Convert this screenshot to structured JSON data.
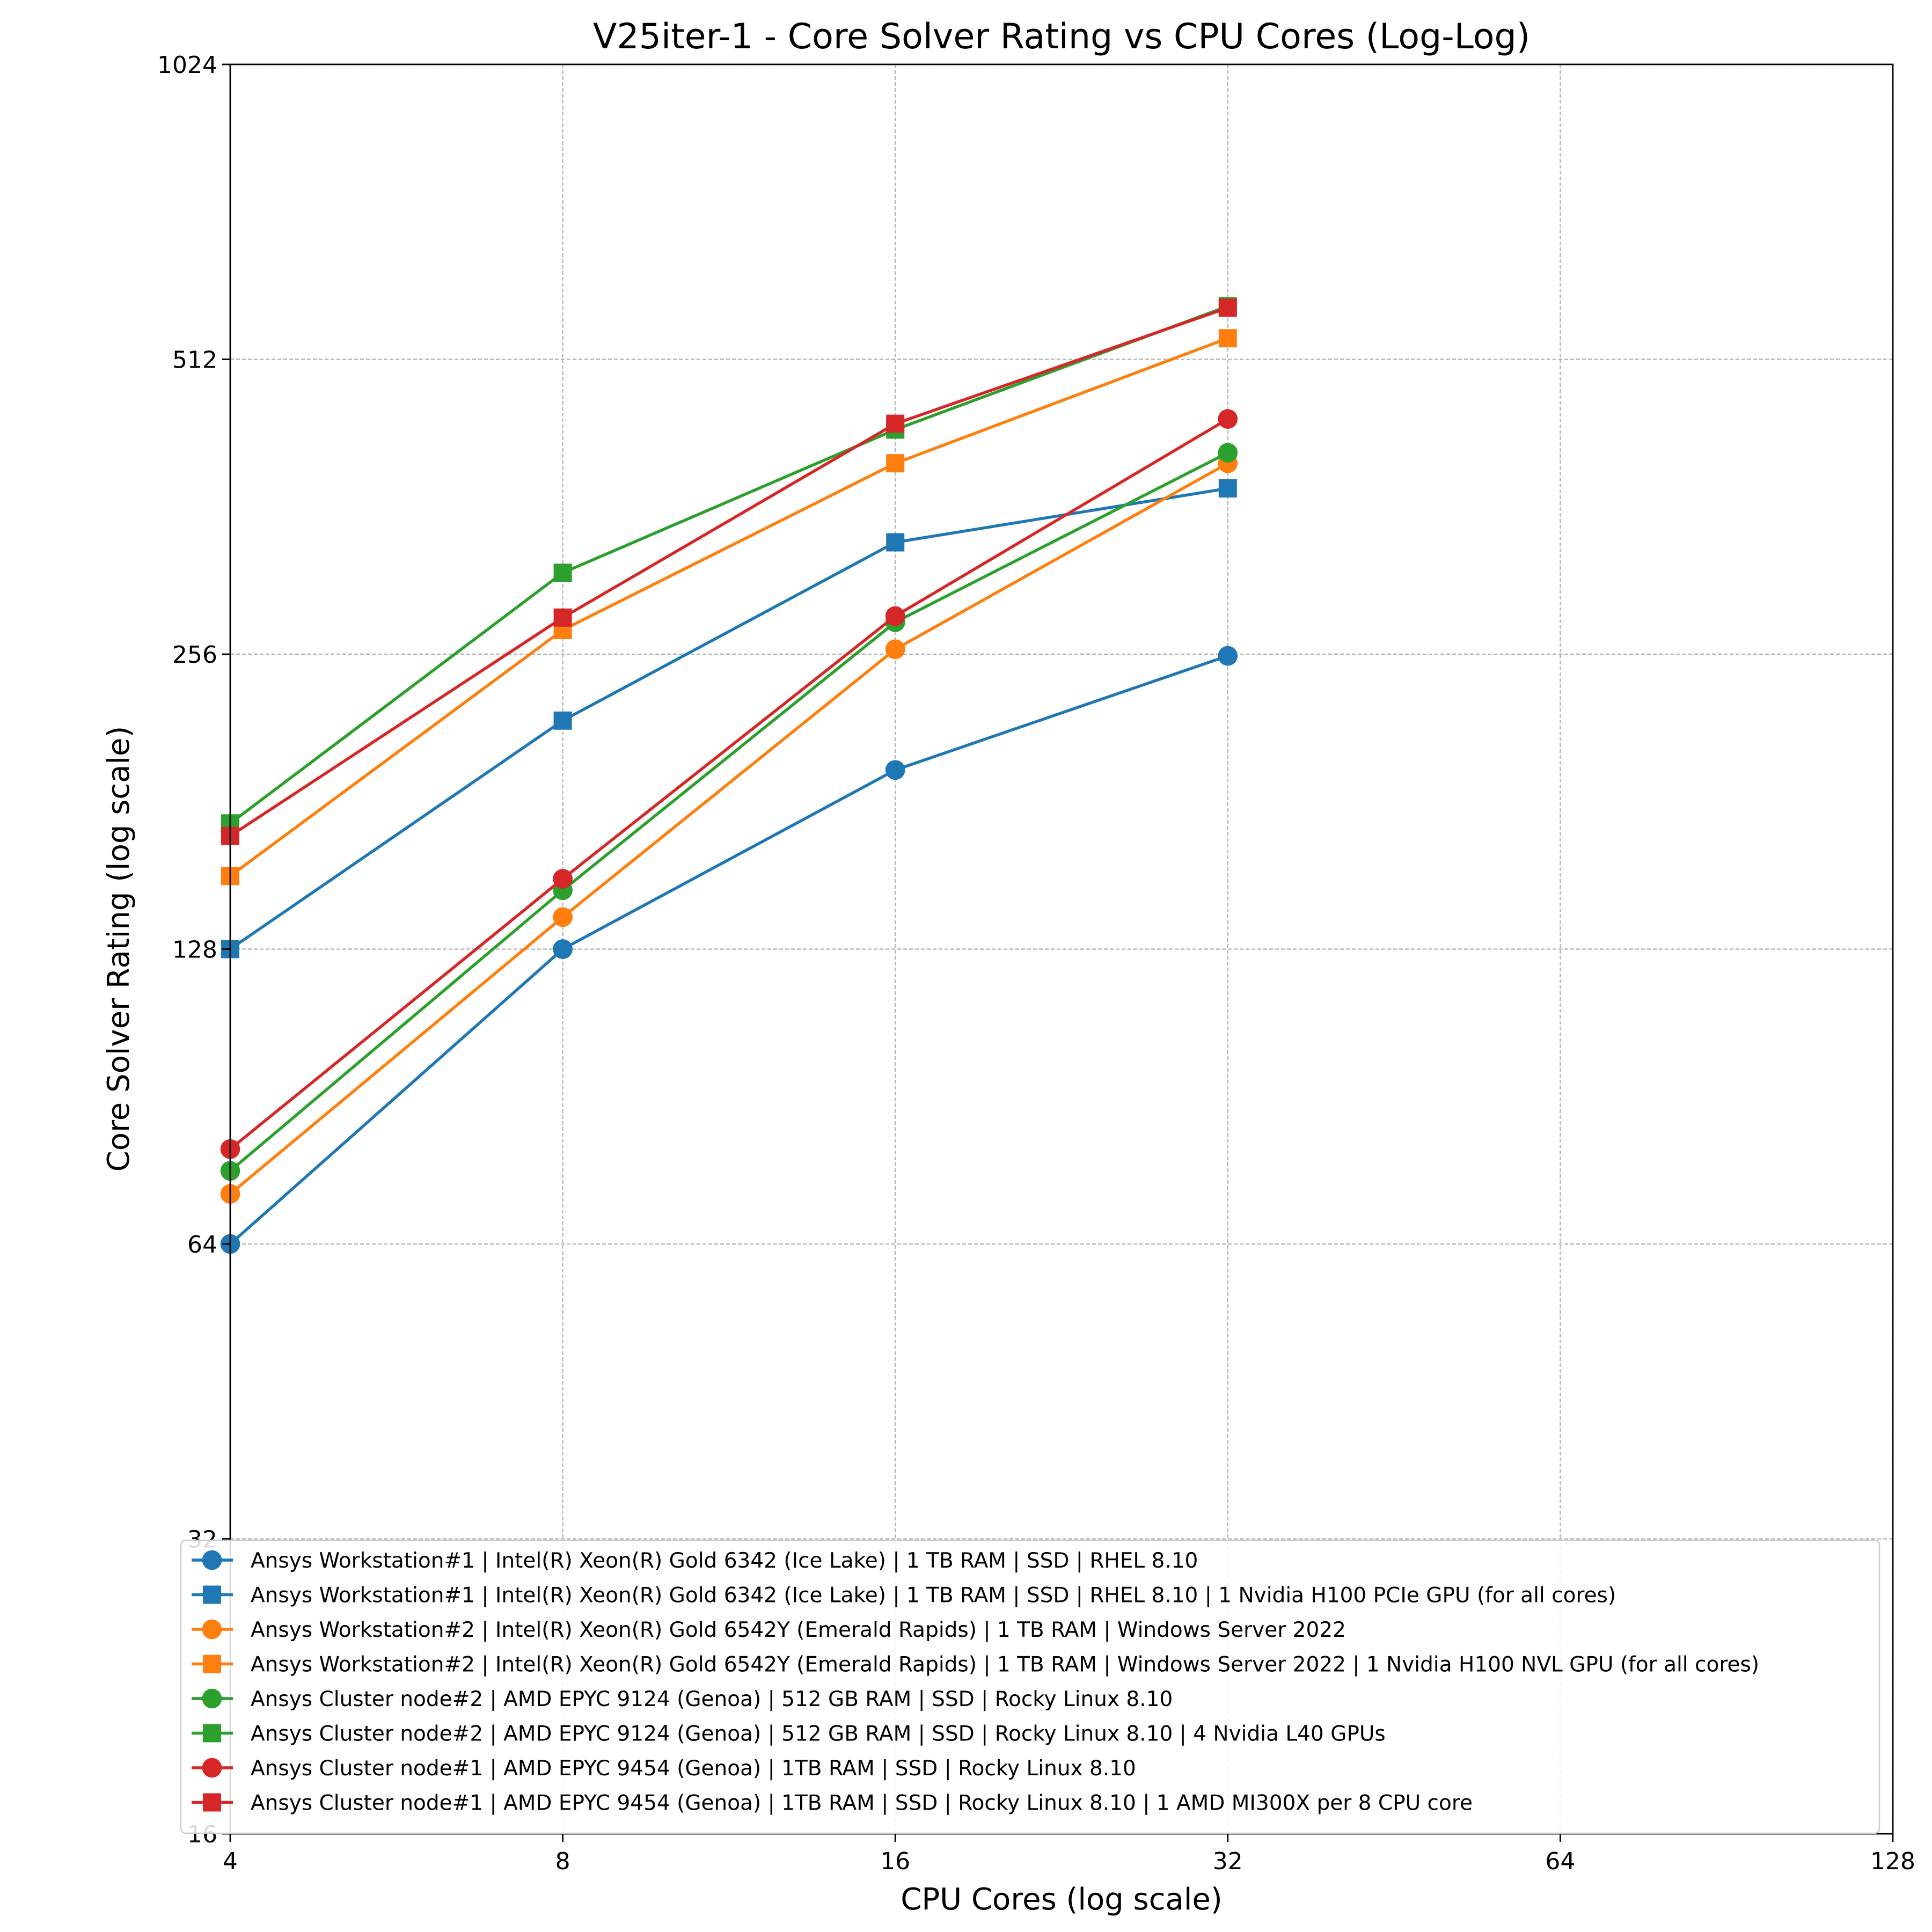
{
  "chart_data": {
    "type": "line",
    "title": "V25iter-1 - Core Solver Rating vs CPU Cores (Log-Log)",
    "xlabel": "CPU Cores (log scale)",
    "ylabel": "Core Solver Rating (log scale)",
    "xscale": "log2",
    "yscale": "log2",
    "xlim": [
      4,
      128
    ],
    "ylim": [
      16,
      1024
    ],
    "xticks": [
      "4",
      "8",
      "16",
      "32",
      "64",
      "128"
    ],
    "xtick_values": [
      4,
      8,
      16,
      32,
      64,
      128
    ],
    "yticks": [
      "16",
      "32",
      "64",
      "128",
      "256",
      "512",
      "1024"
    ],
    "ytick_values": [
      16,
      32,
      64,
      128,
      256,
      512,
      1024
    ],
    "grid": true,
    "legend_position": "lower-right",
    "x": [
      4,
      8,
      16,
      32
    ],
    "series": [
      {
        "name": "Ansys Workstation#1 | Intel(R) Xeon(R) Gold 6342 (Ice Lake) | 1 TB RAM | SSD | RHEL 8.10",
        "color": "#1f77b4",
        "marker": "circle",
        "values": [
          64,
          128,
          195,
          255
        ]
      },
      {
        "name": "Ansys Workstation#1 | Intel(R) Xeon(R) Gold 6342 (Ice Lake) | 1 TB RAM | SSD | RHEL 8.10 | 1 Nvidia H100 PCIe GPU (for all cores)",
        "color": "#1f77b4",
        "marker": "square",
        "values": [
          128,
          219,
          333,
          378
        ]
      },
      {
        "name": "Ansys Workstation#2 | Intel(R) Xeon(R) Gold 6542Y (Emerald Rapids) | 1 TB RAM | Windows Server 2022",
        "color": "#ff7f0e",
        "marker": "circle",
        "values": [
          72,
          138,
          259,
          401
        ]
      },
      {
        "name": "Ansys Workstation#2 | Intel(R) Xeon(R) Gold 6542Y (Emerald Rapids) | 1 TB RAM | Windows Server 2022 | 1 Nvidia H100 NVL GPU (for all cores)",
        "color": "#ff7f0e",
        "marker": "square",
        "values": [
          152,
          271,
          401,
          538
        ]
      },
      {
        "name": "Ansys Cluster node#2 | AMD EPYC 9124 (Genoa) | 512 GB RAM | SSD | Rocky Linux 8.10",
        "color": "#2ca02c",
        "marker": "circle",
        "values": [
          76,
          147,
          276,
          411
        ]
      },
      {
        "name": "Ansys Cluster node#2 | AMD EPYC 9124 (Genoa) | 512 GB RAM | SSD | Rocky Linux 8.10 | 4 Nvidia L40 GPUs",
        "color": "#2ca02c",
        "marker": "square",
        "values": [
          172,
          310,
          434,
          580
        ]
      },
      {
        "name": "Ansys Cluster node#1 | AMD EPYC 9454 (Genoa) | 1TB  RAM | SSD | Rocky Linux 8.10",
        "color": "#d62728",
        "marker": "circle",
        "values": [
          80,
          151,
          280,
          445
        ]
      },
      {
        "name": "Ansys Cluster node#1 | AMD EPYC 9454 (Genoa) | 1TB  RAM | SSD | Rocky Linux 8.10 | 1 AMD MI300X per 8 CPU core",
        "color": "#d62728",
        "marker": "square",
        "values": [
          167,
          279,
          440,
          578
        ]
      }
    ]
  }
}
